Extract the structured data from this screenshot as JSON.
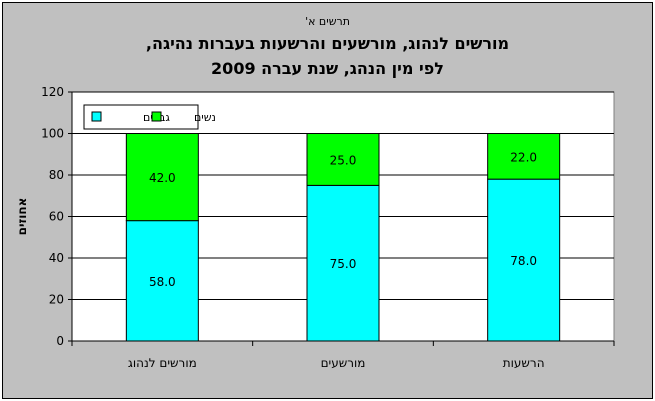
{
  "figure": {
    "label": "תרשים א'",
    "title_line1": "מורשים לנהוג, מורשעים והרשעות בעברות נהיגה,",
    "title_line2": "לפי מין הנהג, שנת עברה 2009"
  },
  "chart_data": {
    "type": "bar",
    "stacked": true,
    "categories": [
      "מורשים לנהוג",
      "מורשעים",
      "הרשעות"
    ],
    "series": [
      {
        "name": "גברים",
        "values": [
          58.0,
          75.0,
          78.0
        ],
        "color": "#00ffff"
      },
      {
        "name": "נשים",
        "values": [
          42.0,
          25.0,
          22.0
        ],
        "color": "#00ff00"
      }
    ],
    "data_labels": [
      [
        "58.0",
        "75.0",
        "78.0"
      ],
      [
        "42.0",
        "25.0",
        "22.0"
      ]
    ],
    "ylabel": "אחוזים",
    "xlabel": "",
    "ylim": [
      0,
      120
    ],
    "yticks": [
      0,
      20,
      40,
      60,
      80,
      100,
      120
    ],
    "grid": true,
    "legend_position": "top-left",
    "plot_background": "#ffffff",
    "chart_background": "#c0c0c0"
  }
}
